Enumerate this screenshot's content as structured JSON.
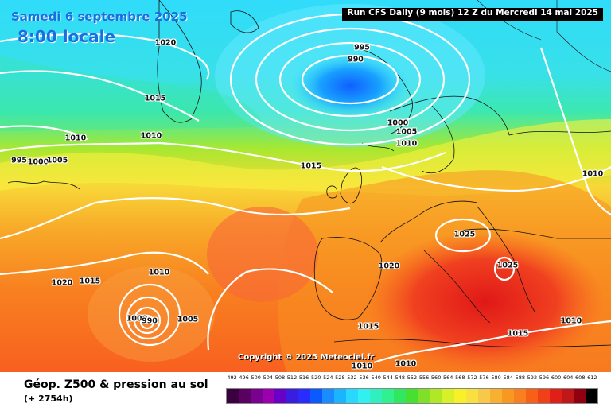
{
  "header": {
    "date": "Samedi 6 septembre 2025",
    "time": "8:00 locale",
    "run_info": "Run CFS Daily (9 mois) 12 Z du Mercredi 14 mai 2025"
  },
  "copyright": "Copyright © 2025 Meteociel.fr",
  "footer": {
    "title": "Géop. Z500 & pression au sol",
    "subtitle": "(+ 2754h)"
  },
  "isobar_labels": [
    "1020",
    "995",
    "990",
    "1015",
    "1010",
    "1010",
    "995",
    "1000",
    "1005",
    "1000",
    "1005",
    "1010",
    "1015",
    "1010",
    "1025",
    "1025",
    "1020",
    "1010",
    "1020",
    "1015",
    "1000",
    "990",
    "1005",
    "1015",
    "1010",
    "1010",
    "1015",
    "1010"
  ],
  "scale": {
    "values": [
      "492",
      "496",
      "500",
      "504",
      "508",
      "512",
      "516",
      "520",
      "524",
      "528",
      "532",
      "536",
      "540",
      "544",
      "548",
      "552",
      "556",
      "560",
      "564",
      "568",
      "572",
      "576",
      "580",
      "584",
      "588",
      "592",
      "596",
      "600",
      "604",
      "608",
      "612"
    ],
    "colors": [
      "#3a0040",
      "#5a0060",
      "#7a0090",
      "#9a00b0",
      "#6a00c8",
      "#3a1ee0",
      "#2a2cff",
      "#0a5aff",
      "#1a8cff",
      "#1ab4ff",
      "#28d8ff",
      "#30f0f0",
      "#30f0c0",
      "#30f090",
      "#30e860",
      "#48e030",
      "#80e028",
      "#b0e828",
      "#d8f028",
      "#f8f028",
      "#f8e040",
      "#f8c848",
      "#f8b030",
      "#f89820",
      "#f88020",
      "#f86018",
      "#f04018",
      "#e02018",
      "#c01818",
      "#900010",
      "#000000"
    ]
  }
}
